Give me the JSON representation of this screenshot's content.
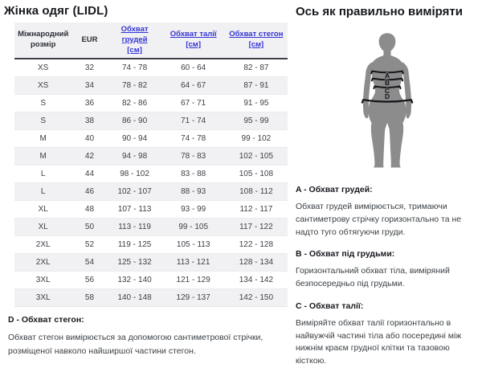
{
  "left": {
    "title": "Жінка одяг (LIDL)",
    "d_heading": "D - Обхват стегон:",
    "d_text": "Обхват стегон вимірюється за допомогою сантиметрової стрічки, розміщеної навколо найширшої частини стегон."
  },
  "table": {
    "columns": [
      {
        "label": "Міжнародний розмір",
        "unit": "",
        "link": false
      },
      {
        "label": "EUR",
        "unit": "",
        "link": false
      },
      {
        "label": "Обхват грудей",
        "unit": "[см]",
        "link": true
      },
      {
        "label": "Обхват талії",
        "unit": "[см]",
        "link": true
      },
      {
        "label": "Обхват стегон",
        "unit": "[см]",
        "link": true
      }
    ],
    "rows": [
      [
        "XS",
        "32",
        "74 - 78",
        "60 - 64",
        "82 - 87"
      ],
      [
        "XS",
        "34",
        "78 - 82",
        "64 - 67",
        "87 - 91"
      ],
      [
        "S",
        "36",
        "82 - 86",
        "67 - 71",
        "91 - 95"
      ],
      [
        "S",
        "38",
        "86 - 90",
        "71 - 74",
        "95 - 99"
      ],
      [
        "M",
        "40",
        "90 - 94",
        "74 - 78",
        "99 - 102"
      ],
      [
        "M",
        "42",
        "94 - 98",
        "78 - 83",
        "102 - 105"
      ],
      [
        "L",
        "44",
        "98 - 102",
        "83 - 88",
        "105 - 108"
      ],
      [
        "L",
        "46",
        "102 - 107",
        "88 - 93",
        "108 - 112"
      ],
      [
        "XL",
        "48",
        "107 - 113",
        "93 - 99",
        "112 - 117"
      ],
      [
        "XL",
        "50",
        "113 - 119",
        "99 - 105",
        "117 - 122"
      ],
      [
        "2XL",
        "52",
        "119 - 125",
        "105 - 113",
        "122 - 128"
      ],
      [
        "2XL",
        "54",
        "125 - 132",
        "113 - 121",
        "128 - 134"
      ],
      [
        "3XL",
        "56",
        "132 - 140",
        "121 - 129",
        "134 - 142"
      ],
      [
        "3XL",
        "58",
        "140 - 148",
        "129 - 137",
        "142 - 150"
      ]
    ]
  },
  "right": {
    "title": "Ось як правильно виміряти",
    "figure_labels": [
      "A",
      "B",
      "C",
      "D"
    ],
    "sections": [
      {
        "heading": "A - Обхват грудей:",
        "text": "Обхват грудей вимірюється, тримаючи сантиметрову стрічку горизонтально та не надто туго обтягуючи груди."
      },
      {
        "heading": "B - Обхват під грудьми:",
        "text": "Горизонтальний обхват тіла, виміряний безпосередньо під грудьми."
      },
      {
        "heading": "C - Обхват талії:",
        "text": "Виміряйте обхват талії горизонтально в найвужчій частині тіла або посередині між нижнім краєм грудної клітки та тазовою кісткою."
      }
    ]
  },
  "colors": {
    "link_blue": "#3333d6",
    "header_row_bg": "#f1f1f3",
    "alt_row_bg": "#f1f1f3",
    "silhouette_gray": "#8c8c8c",
    "body_text": "#3b4045"
  }
}
